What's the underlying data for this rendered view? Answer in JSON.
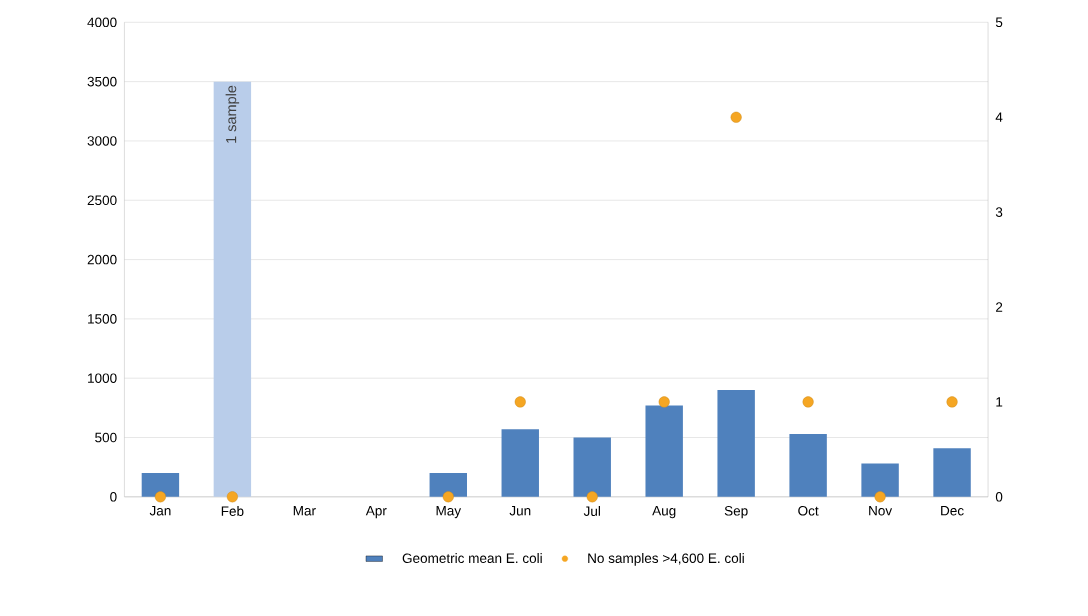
{
  "chart_data": {
    "type": "bar",
    "categories": [
      "Jan",
      "Feb",
      "Mar",
      "Apr",
      "May",
      "Jun",
      "Jul",
      "Aug",
      "Sep",
      "Oct",
      "Nov",
      "Dec"
    ],
    "series": [
      {
        "name": "Geometric mean E. coli",
        "type": "bar",
        "color": "#4f81bd",
        "colors": [
          "#4f81bd",
          "#b9cdea",
          "#4f81bd",
          "#4f81bd",
          "#4f81bd",
          "#4f81bd",
          "#4f81bd",
          "#4f81bd",
          "#4f81bd",
          "#4f81bd",
          "#4f81bd",
          "#4f81bd"
        ],
        "values": [
          200,
          3500,
          null,
          null,
          200,
          570,
          500,
          770,
          900,
          530,
          280,
          410
        ]
      },
      {
        "name": "No samples >4,600 E. coli",
        "type": "scatter",
        "axis": "y2",
        "color": "#f5a623",
        "values": [
          0,
          0,
          null,
          null,
          0,
          1,
          0,
          1,
          4,
          1,
          0,
          1
        ]
      }
    ],
    "ylim": [
      0,
      4000
    ],
    "yticks": [
      0,
      500,
      1000,
      1500,
      2000,
      2500,
      3000,
      3500,
      4000
    ],
    "y2lim": [
      0,
      5
    ],
    "y2ticks": [
      0,
      1,
      2,
      3,
      4,
      5
    ],
    "annotations": [
      {
        "text": "1 sample",
        "x": "Feb",
        "y": 3500
      }
    ],
    "grid": "y",
    "legend": "bottom",
    "marker": "circle"
  }
}
